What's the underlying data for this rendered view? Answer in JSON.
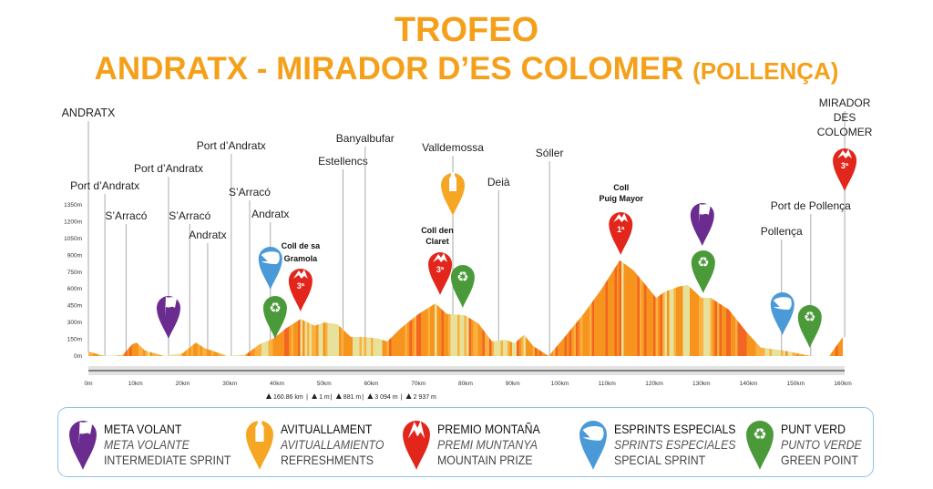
{
  "header": {
    "title_line1": "TROFEO",
    "title_line2": "ANDRATX - MIRADOR D’ES COLOMER",
    "title_line2_suffix": "(POLLENÇA)"
  },
  "colors": {
    "title": "#f5a01a",
    "meta_volant": "#6a2c8f",
    "avituallament": "#f5a623",
    "premio_montana": "#e2261c",
    "esprints": "#4a9ad8",
    "punt_verde": "#4a9a3a",
    "legend_border": "#8ec3e6"
  },
  "chart_data": {
    "type": "area",
    "xlabel": "",
    "ylabel": "",
    "xlim": [
      0,
      160
    ],
    "ylim": [
      0,
      1350
    ],
    "x_ticks": [
      "0m",
      "10km",
      "20km",
      "30km",
      "40km",
      "50km",
      "60km",
      "70km",
      "80km",
      "90km",
      "100km",
      "110km",
      "120km",
      "130km",
      "140km",
      "150km",
      "160km"
    ],
    "y_ticks": [
      "0m",
      "150m",
      "300m",
      "450m",
      "600m",
      "750m",
      "900m",
      "1050m",
      "1200m",
      "1350m"
    ],
    "grid": false,
    "profile": {
      "km": [
        0,
        3.5,
        7.3,
        9.3,
        10.2,
        12,
        16,
        20,
        22.8,
        24.7,
        29.5,
        33.4,
        36.3,
        39.2,
        42,
        45,
        48,
        50,
        52.8,
        55.7,
        58.6,
        61.5,
        63.4,
        66.3,
        70,
        73.6,
        76,
        79.8,
        82.7,
        85.6,
        88.5,
        90.4,
        92.4,
        94.3,
        97.6,
        101,
        105,
        108.8,
        112.7,
        115.6,
        118.5,
        120.4,
        122.3,
        125.2,
        127.1,
        130,
        132,
        135.8,
        139.7,
        142.6,
        147.4,
        153.2,
        157.1,
        160
      ],
      "elevation_m": [
        40,
        0,
        10,
        105,
        120,
        50,
        0,
        25,
        120,
        70,
        0,
        15,
        105,
        155,
        250,
        330,
        270,
        300,
        285,
        170,
        170,
        155,
        130,
        250,
        375,
        470,
        375,
        365,
        290,
        130,
        145,
        115,
        190,
        90,
        0,
        170,
        375,
        595,
        855,
        765,
        620,
        520,
        575,
        620,
        635,
        520,
        520,
        415,
        210,
        75,
        50,
        0,
        0,
        170
      ]
    },
    "places": [
      {
        "name": "ANDRATX",
        "km": 0
      },
      {
        "name": "Port d’Andratx",
        "km": 3.5
      },
      {
        "name": "S’Arracó",
        "km": 8
      },
      {
        "name": "Port d’Andratx",
        "km": 17
      },
      {
        "name": "S’Arracó",
        "km": 21.5
      },
      {
        "name": "Andratx",
        "km": 25.3
      },
      {
        "name": "Port d’Andratx",
        "km": 30.3
      },
      {
        "name": "S’Arracó",
        "km": 34.2
      },
      {
        "name": "Andratx",
        "km": 38.6
      },
      {
        "name": "Estellencs",
        "km": 54
      },
      {
        "name": "Banyalbufar",
        "km": 58.7
      },
      {
        "name": "Valldemossa",
        "km": 77.3
      },
      {
        "name": "Deià",
        "km": 87
      },
      {
        "name": "Sóller",
        "km": 97.8
      },
      {
        "name": "Pollença",
        "km": 147
      },
      {
        "name": "Port de Pollença",
        "km": 153.2
      },
      {
        "name": "MIRADOR DES COLOMER",
        "km": 160.4
      }
    ],
    "climbs": [
      {
        "name": "Coll de sa Gramola",
        "km": 45,
        "category": "3ª"
      },
      {
        "name": "Coll den Claret",
        "km": 74,
        "category": "3ª"
      },
      {
        "name": "Coll Puig Mayor",
        "km": 113,
        "category": "1ª"
      }
    ],
    "markers": [
      {
        "type": "meta_volant",
        "km": 17
      },
      {
        "type": "esprints",
        "km": 38.6
      },
      {
        "type": "punt_verde",
        "km": 39.6
      },
      {
        "type": "premio_montana",
        "km": 45,
        "label": "3ª"
      },
      {
        "type": "avituallament",
        "km": 77.3
      },
      {
        "type": "premio_montana",
        "km": 74.6,
        "label": "3ª"
      },
      {
        "type": "punt_verde",
        "km": 79.4
      },
      {
        "type": "premio_montana",
        "km": 112.9,
        "label": "1ª"
      },
      {
        "type": "meta_volant",
        "km": 130.2
      },
      {
        "type": "punt_verde",
        "km": 130.4
      },
      {
        "type": "esprints",
        "km": 147.2
      },
      {
        "type": "punt_verde",
        "km": 153
      },
      {
        "type": "premio_montana",
        "km": 160.4,
        "label": "3ª"
      }
    ],
    "stats": [
      "160.86 km",
      "1 m",
      "881 m",
      "3 094 m",
      "2 937 m"
    ]
  },
  "legend": [
    {
      "type": "meta_volant",
      "line1": "META VOLANT",
      "line2": "META VOLANTE",
      "line3": "INTERMEDIATE SPRINT"
    },
    {
      "type": "avituallament",
      "line1": "AVITUALLAMENT",
      "line2": "AVITUALLAMIENTO",
      "line3": "REFRESHMENTS"
    },
    {
      "type": "premio_montana",
      "line1": "PREMIO MONTAÑA",
      "line2": "PREMI MUNTANYA",
      "line3": "MOUNTAIN PRIZE"
    },
    {
      "type": "esprints",
      "line1": "ESPRINTS ESPECIALS",
      "line2": "SPRINTS ESPECIALES",
      "line3": "SPECIAL SPRINT"
    },
    {
      "type": "punt_verde",
      "line1": "PUNT VERD",
      "line2": "PUNTO VERDE",
      "line3": "GREEN POINT"
    }
  ]
}
